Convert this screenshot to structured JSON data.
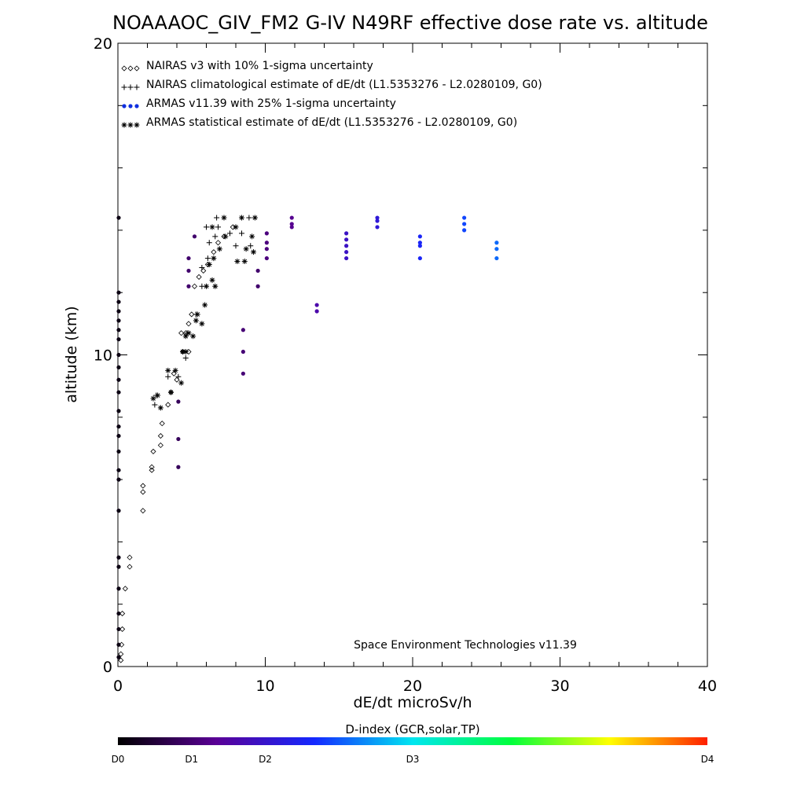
{
  "chart_data": {
    "type": "scatter",
    "title": "NOAAAOC_GIV_FM2 G-IV   N49RF  effective dose rate vs. altitude",
    "xlabel": "dE/dt microSv/h",
    "ylabel": "altitude (km)",
    "xlim": [
      0,
      40
    ],
    "ylim": [
      0,
      20
    ],
    "x_ticks": [
      {
        "value": 0,
        "label": "0"
      },
      {
        "value": 10,
        "label": "10"
      },
      {
        "value": 20,
        "label": "20"
      },
      {
        "value": 30,
        "label": "30"
      },
      {
        "value": 40,
        "label": "40"
      }
    ],
    "y_ticks": [
      {
        "value": 0,
        "label": "0"
      },
      {
        "value": 10,
        "label": "10"
      },
      {
        "value": 20,
        "label": "20"
      }
    ],
    "legend": {
      "placement": "top-left",
      "entries": [
        {
          "marker": "diamond",
          "label": "NAIRAS v3 with 10% 1-sigma uncertainty"
        },
        {
          "marker": "plus",
          "label": "NAIRAS climatological estimate of dE/dt (L1.5353276 - L2.0280109, G0)"
        },
        {
          "marker": "dot",
          "color": "#1030e0",
          "label": "ARMAS v11.39 with 25% 1-sigma uncertainty"
        },
        {
          "marker": "asterisk",
          "label": "ARMAS statistical estimate of dE/dt (L1.5353276 - L2.0280109, G0)"
        }
      ]
    },
    "credit": "Space Environment Technologies v11.39",
    "colorbar": {
      "title": "D-index (GCR,solar,TP)",
      "stops": [
        "#000000",
        "#5a0096",
        "#1428ff",
        "#00e6f0",
        "#00ff3c",
        "#ffff00",
        "#ff1e00"
      ],
      "ticks": [
        {
          "pos": 0,
          "label": "D0"
        },
        {
          "pos": 0.125,
          "label": "D1"
        },
        {
          "pos": 0.25,
          "label": "D2"
        },
        {
          "pos": 0.5,
          "label": "D3"
        },
        {
          "pos": 1,
          "label": "D4"
        }
      ]
    },
    "series": [
      {
        "name": "NAIRAS v3 with 10% 1-sigma uncertainty",
        "marker": "diamond",
        "points": [
          [
            0.2,
            0.2
          ],
          [
            0.2,
            0.4
          ],
          [
            0.25,
            0.7
          ],
          [
            0.3,
            1.2
          ],
          [
            0.3,
            1.7
          ],
          [
            0.5,
            2.5
          ],
          [
            0.8,
            3.2
          ],
          [
            0.8,
            3.5
          ],
          [
            1.7,
            5.0
          ],
          [
            1.7,
            5.6
          ],
          [
            1.7,
            5.8
          ],
          [
            2.3,
            6.3
          ],
          [
            2.3,
            6.4
          ],
          [
            2.4,
            6.9
          ],
          [
            2.9,
            7.1
          ],
          [
            2.9,
            7.4
          ],
          [
            3.0,
            7.8
          ],
          [
            3.4,
            8.4
          ],
          [
            3.6,
            8.8
          ],
          [
            4.0,
            9.2
          ],
          [
            3.8,
            9.4
          ],
          [
            4.4,
            10.1
          ],
          [
            4.8,
            10.1
          ],
          [
            4.3,
            10.7
          ],
          [
            4.6,
            10.7
          ],
          [
            4.8,
            11.0
          ],
          [
            5.0,
            11.3
          ],
          [
            5.2,
            12.2
          ],
          [
            5.5,
            12.5
          ],
          [
            5.8,
            12.7
          ],
          [
            6.1,
            12.9
          ],
          [
            6.5,
            13.3
          ],
          [
            6.8,
            13.6
          ],
          [
            7.2,
            13.8
          ],
          [
            7.8,
            14.1
          ]
        ]
      },
      {
        "name": "NAIRAS climatological estimate of dE/dt (L1.5353276 - L2.0280109, G0)",
        "marker": "plus",
        "points": [
          [
            2.5,
            8.4
          ],
          [
            2.6,
            8.7
          ],
          [
            3.4,
            9.3
          ],
          [
            4.1,
            9.3
          ],
          [
            4.6,
            9.9
          ],
          [
            4.7,
            10.7
          ],
          [
            5.3,
            11.3
          ],
          [
            5.7,
            12.2
          ],
          [
            5.7,
            12.8
          ],
          [
            6.1,
            13.1
          ],
          [
            6.2,
            13.6
          ],
          [
            6.6,
            13.8
          ],
          [
            6.0,
            14.1
          ],
          [
            6.8,
            14.1
          ],
          [
            7.6,
            13.9
          ],
          [
            8.0,
            13.5
          ],
          [
            8.4,
            13.9
          ],
          [
            9.0,
            13.5
          ],
          [
            8.9,
            14.4
          ],
          [
            6.7,
            14.4
          ]
        ]
      },
      {
        "name": "ARMAS statistical estimate of dE/dt (L1.5353276 - L2.0280109, G0)",
        "marker": "asterisk",
        "points": [
          [
            2.4,
            8.6
          ],
          [
            2.7,
            8.7
          ],
          [
            2.9,
            8.3
          ],
          [
            3.4,
            9.5
          ],
          [
            3.6,
            8.8
          ],
          [
            3.9,
            9.5
          ],
          [
            4.3,
            9.1
          ],
          [
            4.4,
            10.1
          ],
          [
            4.6,
            10.1
          ],
          [
            4.6,
            10.6
          ],
          [
            4.8,
            10.7
          ],
          [
            5.1,
            10.6
          ],
          [
            5.3,
            11.1
          ],
          [
            5.4,
            11.3
          ],
          [
            5.9,
            11.6
          ],
          [
            5.7,
            11.0
          ],
          [
            6.0,
            12.2
          ],
          [
            6.4,
            12.4
          ],
          [
            6.6,
            12.2
          ],
          [
            6.2,
            12.9
          ],
          [
            6.5,
            13.1
          ],
          [
            6.9,
            13.4
          ],
          [
            7.3,
            13.8
          ],
          [
            6.4,
            14.1
          ],
          [
            7.2,
            14.4
          ],
          [
            8.0,
            14.1
          ],
          [
            8.4,
            14.4
          ],
          [
            8.7,
            13.4
          ],
          [
            9.1,
            13.8
          ],
          [
            9.3,
            14.4
          ],
          [
            8.1,
            13.0
          ],
          [
            8.6,
            13.0
          ],
          [
            9.2,
            13.3
          ]
        ]
      },
      {
        "name": "ARMAS v11.39 with 25% 1-sigma uncertainty",
        "marker": "dot",
        "points": [
          {
            "x": 0,
            "y": 14.4,
            "d": 0.02
          },
          {
            "x": 0,
            "y": 12.0,
            "d": 0.02
          },
          {
            "x": 0,
            "y": 11.7,
            "d": 0.02
          },
          {
            "x": 0,
            "y": 11.4,
            "d": 0.02
          },
          {
            "x": 0,
            "y": 11.1,
            "d": 0.02
          },
          {
            "x": 0,
            "y": 10.8,
            "d": 0.02
          },
          {
            "x": 0,
            "y": 10.5,
            "d": 0.02
          },
          {
            "x": 0,
            "y": 10.0,
            "d": 0.02
          },
          {
            "x": 0,
            "y": 9.6,
            "d": 0.02
          },
          {
            "x": 0,
            "y": 9.2,
            "d": 0.02
          },
          {
            "x": 0,
            "y": 8.8,
            "d": 0.02
          },
          {
            "x": 0,
            "y": 8.2,
            "d": 0.02
          },
          {
            "x": 0,
            "y": 7.7,
            "d": 0.02
          },
          {
            "x": 0,
            "y": 7.4,
            "d": 0.02
          },
          {
            "x": 0,
            "y": 6.9,
            "d": 0.02
          },
          {
            "x": 0,
            "y": 6.3,
            "d": 0.02
          },
          {
            "x": 0,
            "y": 6.0,
            "d": 0.02
          },
          {
            "x": 0,
            "y": 5.0,
            "d": 0.02
          },
          {
            "x": 0,
            "y": 3.5,
            "d": 0.02
          },
          {
            "x": 0,
            "y": 3.2,
            "d": 0.02
          },
          {
            "x": 0,
            "y": 2.5,
            "d": 0.02
          },
          {
            "x": 0,
            "y": 1.7,
            "d": 0.02
          },
          {
            "x": 0,
            "y": 1.2,
            "d": 0.02
          },
          {
            "x": 0,
            "y": 0.7,
            "d": 0.02
          },
          {
            "x": 0,
            "y": 0.3,
            "d": 0.02
          },
          {
            "x": 4.1,
            "y": 6.4,
            "d": 0.1
          },
          {
            "x": 4.1,
            "y": 7.3,
            "d": 0.1
          },
          {
            "x": 4.1,
            "y": 8.5,
            "d": 0.1
          },
          {
            "x": 4.8,
            "y": 12.2,
            "d": 0.12
          },
          {
            "x": 4.8,
            "y": 12.7,
            "d": 0.12
          },
          {
            "x": 4.8,
            "y": 13.1,
            "d": 0.12
          },
          {
            "x": 5.2,
            "y": 13.8,
            "d": 0.12
          },
          {
            "x": 8.5,
            "y": 9.4,
            "d": 0.13
          },
          {
            "x": 8.5,
            "y": 10.1,
            "d": 0.13
          },
          {
            "x": 8.5,
            "y": 10.8,
            "d": 0.13
          },
          {
            "x": 9.5,
            "y": 12.2,
            "d": 0.12
          },
          {
            "x": 9.5,
            "y": 12.7,
            "d": 0.12
          },
          {
            "x": 10.1,
            "y": 13.1,
            "d": 0.14
          },
          {
            "x": 10.1,
            "y": 13.4,
            "d": 0.14
          },
          {
            "x": 10.1,
            "y": 13.6,
            "d": 0.14
          },
          {
            "x": 10.1,
            "y": 13.9,
            "d": 0.14
          },
          {
            "x": 11.8,
            "y": 14.1,
            "d": 0.16
          },
          {
            "x": 11.8,
            "y": 14.2,
            "d": 0.16
          },
          {
            "x": 11.8,
            "y": 14.4,
            "d": 0.16
          },
          {
            "x": 13.5,
            "y": 11.4,
            "d": 0.2
          },
          {
            "x": 13.5,
            "y": 11.6,
            "d": 0.2
          },
          {
            "x": 15.5,
            "y": 13.1,
            "d": 0.24
          },
          {
            "x": 15.5,
            "y": 13.3,
            "d": 0.24
          },
          {
            "x": 15.5,
            "y": 13.5,
            "d": 0.24
          },
          {
            "x": 15.5,
            "y": 13.7,
            "d": 0.24
          },
          {
            "x": 15.5,
            "y": 13.9,
            "d": 0.24
          },
          {
            "x": 17.6,
            "y": 14.1,
            "d": 0.27
          },
          {
            "x": 17.6,
            "y": 14.3,
            "d": 0.27
          },
          {
            "x": 17.6,
            "y": 14.4,
            "d": 0.27
          },
          {
            "x": 20.5,
            "y": 13.1,
            "d": 0.32
          },
          {
            "x": 20.5,
            "y": 13.5,
            "d": 0.32
          },
          {
            "x": 20.5,
            "y": 13.6,
            "d": 0.32
          },
          {
            "x": 20.5,
            "y": 13.8,
            "d": 0.32
          },
          {
            "x": 23.5,
            "y": 14.0,
            "d": 0.36
          },
          {
            "x": 23.5,
            "y": 14.2,
            "d": 0.36
          },
          {
            "x": 23.5,
            "y": 14.4,
            "d": 0.36
          },
          {
            "x": 25.7,
            "y": 13.1,
            "d": 0.39
          },
          {
            "x": 25.7,
            "y": 13.4,
            "d": 0.39
          },
          {
            "x": 25.7,
            "y": 13.6,
            "d": 0.39
          }
        ]
      }
    ]
  }
}
